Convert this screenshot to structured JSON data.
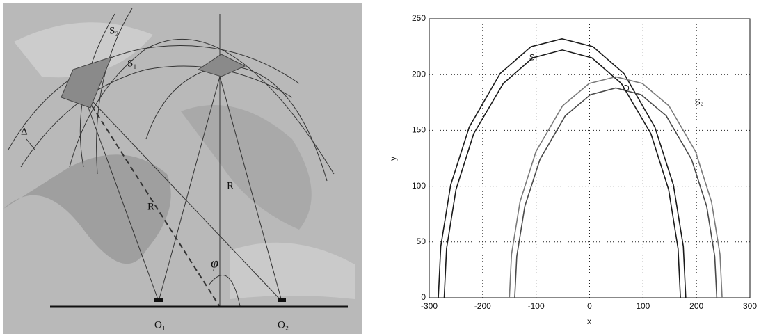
{
  "diagram": {
    "labels": [
      "S₂",
      "S₁",
      "Δ",
      "R",
      "R",
      "φ",
      "O₁",
      "O₂"
    ]
  },
  "chart_data": {
    "type": "line",
    "xlabel": "x",
    "ylabel": "y",
    "xlim": [
      -300,
      300
    ],
    "ylim": [
      0,
      250
    ],
    "xticks": [
      -300,
      -200,
      -100,
      0,
      100,
      200,
      300
    ],
    "yticks": [
      0,
      50,
      100,
      150,
      200,
      250
    ],
    "grid": true,
    "series": [
      {
        "color": "#1a1a1a",
        "x": [
          -283,
          -278.4,
          -259.9,
          -225.1,
          -167.3,
          -109.4,
          -51.5,
          6.4,
          64.3,
          122.1,
          156.9,
          175.4,
          180
        ],
        "values": [
          0,
          46,
          101,
          153,
          201,
          225,
          232,
          225,
          201,
          153,
          101,
          46,
          0
        ]
      },
      {
        "color": "#1a1a1a",
        "x": [
          -272,
          -267.6,
          -249.9,
          -216.8,
          -161.5,
          -106.3,
          -51,
          4.3,
          59.5,
          114.8,
          147.9,
          165.6,
          170
        ],
        "values": [
          0,
          44,
          97,
          147,
          192,
          215,
          222,
          215,
          192,
          147,
          97,
          44,
          0
        ]
      },
      {
        "color": "#7a7a7a",
        "x": [
          -150,
          -146,
          -130.1,
          -100.3,
          -50.5,
          -0.8,
          49,
          98.8,
          148.5,
          198.3,
          228.1,
          244,
          248
        ],
        "values": [
          0,
          39,
          86,
          131,
          172,
          192,
          198,
          192,
          172,
          131,
          86,
          39,
          0
        ]
      },
      {
        "color": "#4a4a4a",
        "x": [
          -140,
          -136.2,
          -121.1,
          -92.8,
          -45.5,
          1.8,
          49,
          96.3,
          143.5,
          190.8,
          219.1,
          234.2,
          238
        ],
        "values": [
          0,
          37,
          82,
          124,
          163,
          182,
          188,
          182,
          163,
          124,
          82,
          37,
          0
        ]
      }
    ],
    "annotations": [
      {
        "text": "S₁",
        "x": -105,
        "y": 215
      },
      {
        "text": "S₂",
        "x": 205,
        "y": 175
      }
    ],
    "marker": {
      "x": 68,
      "y": 188
    }
  }
}
